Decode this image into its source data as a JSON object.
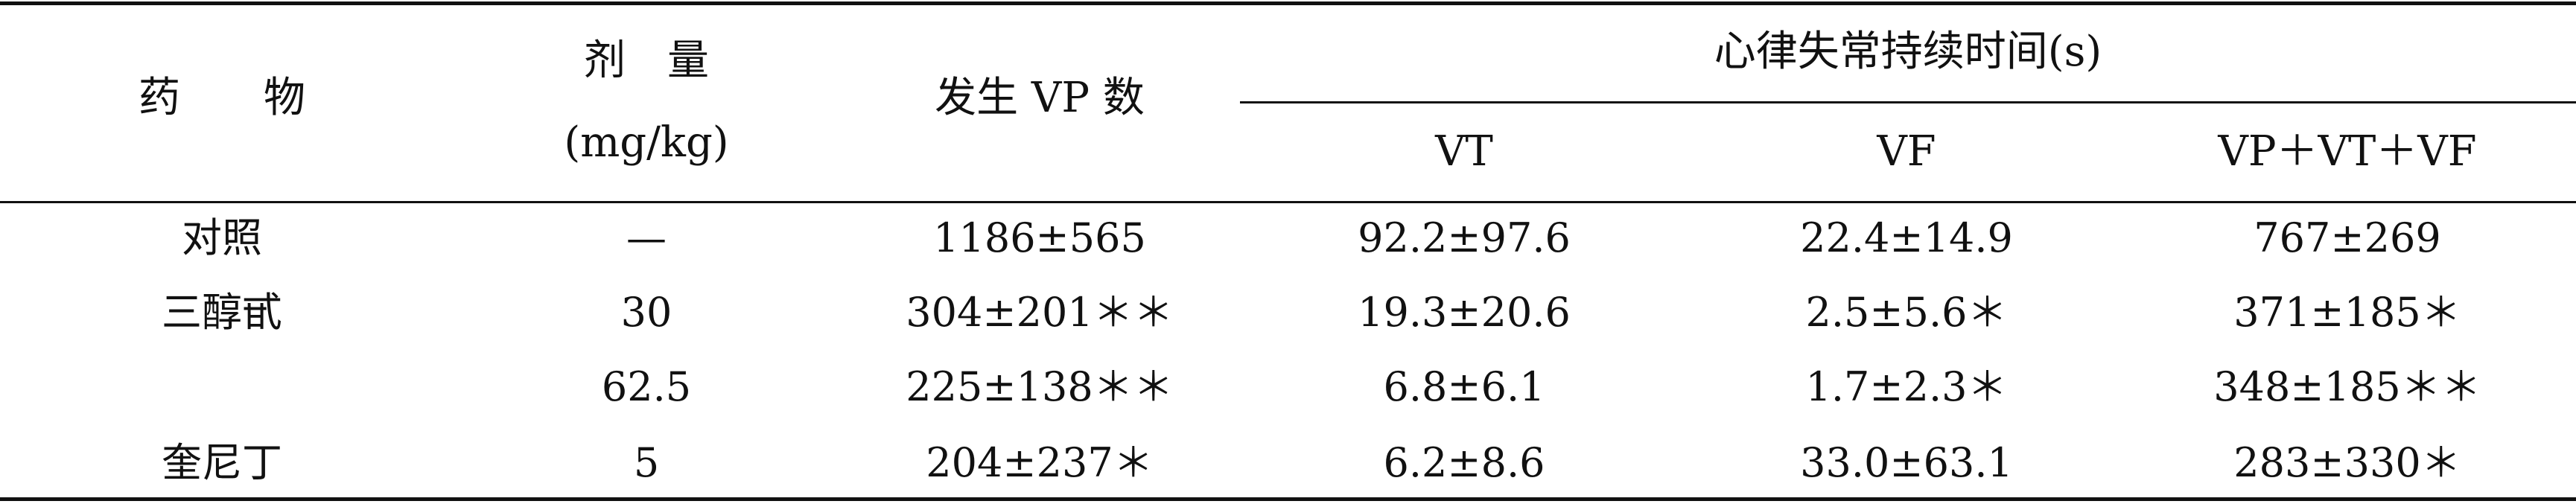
{
  "header": {
    "drug": "药　　物",
    "dose_title": "剂　量",
    "dose_unit": "(mg/kg)",
    "vp_count": "发生 VP 数",
    "duration_group": "心律失常持续时间(s)",
    "vt": "VT",
    "vf": "VF",
    "total": "VP＋VT＋VF"
  },
  "rows": [
    {
      "drug": "对照",
      "dose": "—",
      "vp": "1186±565",
      "vt": "92.2±97.6",
      "vf": "22.4±14.9",
      "total": "767±269"
    },
    {
      "drug": "三醇甙",
      "dose": "30",
      "vp": "304±201＊＊",
      "vt": "19.3±20.6",
      "vf": "2.5±5.6＊",
      "total": "371±185＊"
    },
    {
      "drug": "",
      "dose": "62.5",
      "vp": "225±138＊＊",
      "vt": "6.8±6.1",
      "vf": "1.7±2.3＊",
      "total": "348±185＊＊"
    },
    {
      "drug": "奎尼丁",
      "dose": "5",
      "vp": "204±237＊",
      "vt": "6.2±8.6",
      "vf": "33.0±63.1",
      "total": "283±330＊"
    }
  ]
}
